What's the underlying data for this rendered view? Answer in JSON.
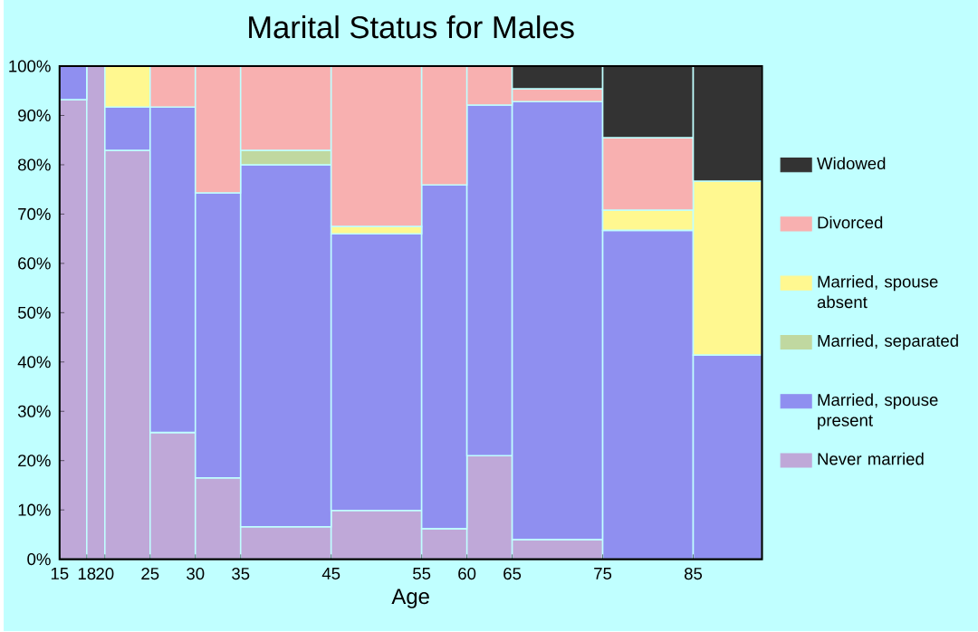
{
  "chart_data": {
    "type": "bar",
    "stacked": true,
    "title": "Marital Status for Males",
    "xlabel": "Age",
    "x": [
      16.5,
      19,
      22.5,
      27.5,
      32.5,
      40,
      50,
      57.5,
      62.5,
      70,
      80,
      88.8
    ],
    "xlim": [
      15,
      92.6
    ],
    "xticks": [
      15,
      18,
      20,
      25,
      30,
      35,
      45,
      55,
      60,
      65,
      75,
      85
    ],
    "ylim": [
      0,
      100
    ],
    "yticks": [
      {
        "value": 0,
        "label": "0%"
      },
      {
        "value": 10,
        "label": "10%"
      },
      {
        "value": 20,
        "label": "20%"
      },
      {
        "value": 30,
        "label": "30%"
      },
      {
        "value": 40,
        "label": "40%"
      },
      {
        "value": 50,
        "label": "50%"
      },
      {
        "value": 60,
        "label": "60%"
      },
      {
        "value": 70,
        "label": "70%"
      },
      {
        "value": 80,
        "label": "80%"
      },
      {
        "value": 90,
        "label": "90%"
      },
      {
        "value": 100,
        "label": "100%"
      }
    ],
    "legend": "right",
    "series": [
      {
        "name": "Never married",
        "color": "#bfa8d8",
        "values": [
          93.2,
          100,
          82.9,
          25.7,
          16.5,
          6.6,
          9.9,
          6.2,
          21.0,
          4.0,
          0,
          0
        ]
      },
      {
        "name": "Married, spouse present",
        "color": "#8f8ff0",
        "values": [
          6.8,
          0,
          8.8,
          66.0,
          57.8,
          73.4,
          56.1,
          69.7,
          71.1,
          88.8,
          66.7,
          41.4
        ]
      },
      {
        "name": "Married, separated",
        "color": "#c0d8a0",
        "values": [
          0,
          0,
          0,
          0,
          0,
          2.9,
          0,
          0,
          0,
          0,
          0,
          0
        ]
      },
      {
        "name": "Married, spouse absent",
        "color": "#fff890",
        "values": [
          0,
          0,
          8.3,
          0,
          0,
          0,
          1.5,
          0,
          0,
          0,
          4.1,
          35.3
        ]
      },
      {
        "name": "Divorced",
        "color": "#f8b0b0",
        "values": [
          0,
          0,
          0,
          8.3,
          25.7,
          17.1,
          32.5,
          24.1,
          7.9,
          2.6,
          14.7,
          0
        ]
      },
      {
        "name": "Widowed",
        "color": "#333333",
        "values": [
          0,
          0,
          0,
          0,
          0,
          0,
          0,
          0,
          0,
          4.6,
          14.5,
          23.3
        ]
      }
    ]
  }
}
